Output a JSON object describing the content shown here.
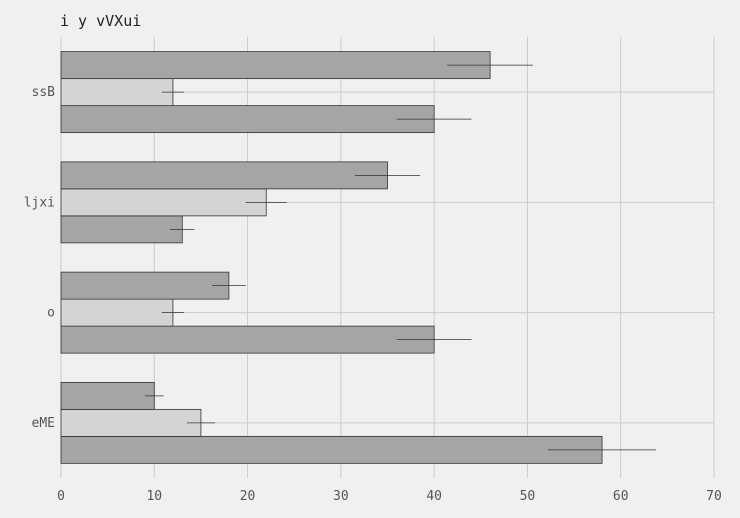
{
  "chart_data": {
    "type": "bar",
    "orientation": "horizontal",
    "title": "i y vVXui",
    "xlabel": "",
    "ylabel": "",
    "categories": [
      "eME",
      "o",
      "ljxi",
      "ssB"
    ],
    "series": [
      {
        "values": [
          58,
          40,
          13,
          40
        ],
        "errors": [
          5.8,
          4.0,
          1.3,
          4.0
        ],
        "color": "#a5a5a5"
      },
      {
        "values": [
          15,
          12,
          22,
          12
        ],
        "errors": [
          1.5,
          1.2,
          2.2,
          1.2
        ],
        "color": "#d4d4d4"
      },
      {
        "values": [
          10,
          18,
          35,
          46
        ],
        "errors": [
          1.0,
          1.8,
          3.5,
          4.6
        ],
        "color": "#a5a5a5"
      }
    ],
    "xlim": [
      0,
      70
    ],
    "xticks": [
      0,
      10,
      20,
      30,
      40,
      50,
      60,
      70
    ],
    "grid": true,
    "legend": "none"
  }
}
